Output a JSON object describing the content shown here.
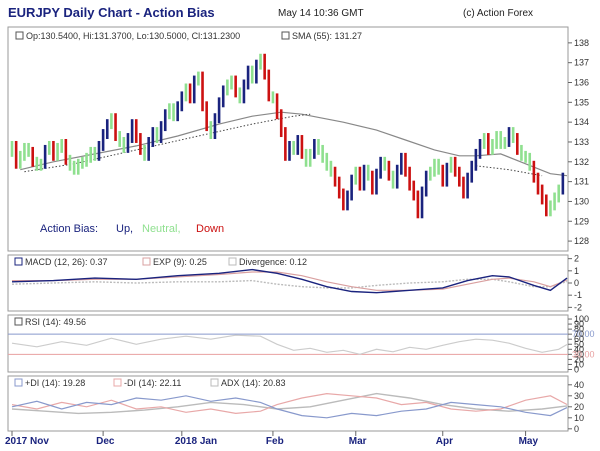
{
  "header": {
    "title": "EURJPY Daily Chart - Action Bias",
    "date": "May 14 10:36 GMT",
    "copyright": "(c) Action Forex"
  },
  "colors": {
    "up": "#1a237e",
    "neutral": "#8fe08f",
    "down": "#cc1111",
    "sma": "#888888",
    "ma_dotted": "#444444",
    "macd": "#1a237e",
    "exp": "#d9a0a0",
    "divergence": "#bbbbbb",
    "rsi": "#cccccc",
    "rsi_level_high": "#8899cc",
    "rsi_level_low": "#e8a0a0",
    "plus_di": "#8899cc",
    "minus_di": "#e8a8a8",
    "adx": "#bbbbbb"
  },
  "chart_data": [
    {
      "type": "bar",
      "panel": "price",
      "info": {
        "ohlc": "Op:130.5400, Hi:131.3700, Lo:130.5000, Cl:131.2300",
        "sma": "SMA (55): 131.27"
      },
      "legend": {
        "label": "Action Bias:",
        "up": "Up,",
        "neutral": "Neutral,",
        "down": "Down"
      },
      "ylim": [
        127.5,
        138.8
      ],
      "yticks": [
        128,
        129,
        130,
        131,
        132,
        133,
        134,
        135,
        136,
        137,
        138
      ],
      "xticks": [
        {
          "label": "2017 Nov",
          "x": 0
        },
        {
          "label": "Dec",
          "x": 22
        },
        {
          "label": "2018 Jan",
          "x": 41
        },
        {
          "label": "Feb",
          "x": 63
        },
        {
          "label": "Mar",
          "x": 83
        },
        {
          "label": "Apr",
          "x": 104
        },
        {
          "label": "May",
          "x": 124
        }
      ],
      "closes": [
        132.8,
        131.9,
        132.3,
        132.7,
        132.5,
        132.0,
        131.8,
        131.9,
        132.6,
        132.8,
        132.3,
        132.7,
        132.9,
        132.1,
        131.8,
        131.6,
        131.9,
        132.0,
        132.2,
        132.5,
        132.3,
        132.8,
        133.4,
        133.9,
        134.2,
        133.3,
        133.0,
        132.7,
        133.2,
        133.9,
        133.2,
        132.6,
        132.3,
        133.0,
        133.5,
        133.2,
        133.8,
        134.4,
        134.7,
        134.3,
        134.8,
        135.3,
        135.7,
        135.2,
        136.1,
        136.3,
        134.8,
        133.8,
        133.4,
        134.2,
        135.0,
        135.6,
        135.9,
        136.1,
        135.5,
        135.2,
        135.9,
        136.6,
        136.2,
        136.9,
        137.2,
        136.4,
        135.3,
        135.2,
        134.4,
        133.5,
        132.3,
        132.8,
        132.6,
        133.1,
        132.4,
        132.0,
        132.4,
        132.9,
        132.6,
        132.2,
        131.8,
        131.5,
        131.0,
        130.4,
        129.8,
        130.3,
        131.1,
        131.5,
        130.8,
        131.6,
        131.3,
        130.6,
        131.4,
        132.0,
        131.8,
        131.3,
        130.9,
        131.6,
        132.2,
        131.5,
        130.8,
        130.3,
        129.4,
        130.5,
        131.3,
        131.5,
        131.9,
        131.6,
        131.0,
        131.7,
        132.0,
        131.5,
        131.0,
        130.4,
        131.2,
        131.8,
        132.4,
        132.9,
        133.2,
        132.6,
        132.9,
        133.3,
        132.9,
        133.0,
        133.5,
        133.2,
        132.6,
        132.3,
        132.2,
        131.8,
        131.2,
        130.6,
        130.1,
        129.5,
        129.8,
        130.2,
        130.6,
        131.2
      ],
      "sma_points": [
        [
          2,
          131.6
        ],
        [
          10,
          132.0
        ],
        [
          20,
          132.4
        ],
        [
          30,
          132.8
        ],
        [
          40,
          133.3
        ],
        [
          50,
          133.9
        ],
        [
          58,
          134.3
        ],
        [
          65,
          134.5
        ],
        [
          70,
          134.4
        ],
        [
          80,
          134.0
        ],
        [
          88,
          133.6
        ],
        [
          95,
          133.1
        ],
        [
          102,
          132.6
        ],
        [
          108,
          132.3
        ],
        [
          112,
          132.3
        ],
        [
          118,
          132.4
        ],
        [
          124,
          131.9
        ],
        [
          130,
          131.4
        ],
        [
          134,
          131.3
        ]
      ],
      "dotted_points": [
        [
          3,
          131.5
        ],
        [
          15,
          131.9
        ],
        [
          30,
          132.6
        ],
        [
          45,
          133.3
        ],
        [
          58,
          133.9
        ],
        [
          68,
          134.3
        ],
        [
          72,
          134.4
        ]
      ],
      "dotted_tail": [
        [
          112,
          131.8
        ],
        [
          120,
          131.6
        ],
        [
          128,
          131.3
        ]
      ]
    },
    {
      "type": "line",
      "panel": "macd",
      "legend": {
        "macd": "MACD (12, 26): 0.37",
        "exp": "EXP (9): 0.25",
        "divergence": "Divergence: 0.12"
      },
      "ylim": [
        -2.3,
        2.3
      ],
      "yticks": [
        -2,
        -1,
        0,
        1,
        2
      ],
      "macd": [
        [
          0,
          0.1
        ],
        [
          10,
          0.2
        ],
        [
          20,
          0.4
        ],
        [
          30,
          0.3
        ],
        [
          40,
          0.6
        ],
        [
          50,
          0.8
        ],
        [
          58,
          1.1
        ],
        [
          64,
          0.8
        ],
        [
          70,
          0.3
        ],
        [
          76,
          -0.3
        ],
        [
          82,
          -0.7
        ],
        [
          88,
          -0.8
        ],
        [
          96,
          -0.6
        ],
        [
          104,
          -0.4
        ],
        [
          110,
          0.2
        ],
        [
          116,
          0.6
        ],
        [
          120,
          0.5
        ],
        [
          126,
          -0.2
        ],
        [
          130,
          -0.6
        ],
        [
          134,
          0.4
        ]
      ],
      "exp": [
        [
          0,
          0.2
        ],
        [
          10,
          0.2
        ],
        [
          20,
          0.3
        ],
        [
          30,
          0.3
        ],
        [
          40,
          0.5
        ],
        [
          50,
          0.7
        ],
        [
          58,
          0.9
        ],
        [
          64,
          0.9
        ],
        [
          70,
          0.6
        ],
        [
          76,
          0.1
        ],
        [
          82,
          -0.3
        ],
        [
          88,
          -0.6
        ],
        [
          96,
          -0.6
        ],
        [
          104,
          -0.5
        ],
        [
          110,
          -0.1
        ],
        [
          116,
          0.3
        ],
        [
          120,
          0.4
        ],
        [
          126,
          0.1
        ],
        [
          130,
          -0.3
        ],
        [
          134,
          0.25
        ]
      ],
      "divergence": [
        [
          0,
          -0.1
        ],
        [
          10,
          0.0
        ],
        [
          20,
          0.1
        ],
        [
          30,
          0.0
        ],
        [
          40,
          0.1
        ],
        [
          50,
          0.1
        ],
        [
          58,
          0.2
        ],
        [
          64,
          -0.1
        ],
        [
          70,
          -0.3
        ],
        [
          76,
          -0.4
        ],
        [
          82,
          -0.4
        ],
        [
          88,
          -0.2
        ],
        [
          96,
          0.0
        ],
        [
          104,
          0.1
        ],
        [
          110,
          0.3
        ],
        [
          116,
          0.3
        ],
        [
          120,
          0.1
        ],
        [
          126,
          -0.3
        ],
        [
          130,
          -0.3
        ],
        [
          134,
          0.12
        ]
      ]
    },
    {
      "type": "line",
      "panel": "rsi",
      "legend": {
        "rsi": "RSI (14): 49.56"
      },
      "ylim": [
        -5,
        108
      ],
      "yticks": [
        0,
        10,
        20,
        30,
        40,
        50,
        60,
        70,
        80,
        90,
        100
      ],
      "levels": [
        70,
        30
      ],
      "level_labels": [
        "70.00",
        "30.00"
      ],
      "rsi": [
        [
          0,
          52
        ],
        [
          6,
          45
        ],
        [
          12,
          55
        ],
        [
          18,
          48
        ],
        [
          24,
          62
        ],
        [
          30,
          50
        ],
        [
          36,
          60
        ],
        [
          42,
          66
        ],
        [
          48,
          60
        ],
        [
          54,
          68
        ],
        [
          60,
          66
        ],
        [
          64,
          50
        ],
        [
          68,
          38
        ],
        [
          72,
          42
        ],
        [
          76,
          34
        ],
        [
          80,
          38
        ],
        [
          84,
          30
        ],
        [
          88,
          40
        ],
        [
          92,
          35
        ],
        [
          96,
          44
        ],
        [
          100,
          40
        ],
        [
          104,
          48
        ],
        [
          108,
          55
        ],
        [
          112,
          60
        ],
        [
          116,
          58
        ],
        [
          120,
          52
        ],
        [
          124,
          42
        ],
        [
          128,
          34
        ],
        [
          132,
          40
        ],
        [
          134,
          49.56
        ]
      ]
    },
    {
      "type": "line",
      "panel": "dmi",
      "legend": {
        "plus_di": "+DI (14): 19.28",
        "minus_di": "-DI (14): 22.11",
        "adx": "ADX (14): 20.83"
      },
      "ylim": [
        -2,
        48
      ],
      "yticks": [
        0,
        10,
        20,
        30,
        40
      ],
      "plus_di": [
        [
          0,
          20
        ],
        [
          6,
          25
        ],
        [
          12,
          18
        ],
        [
          18,
          24
        ],
        [
          24,
          22
        ],
        [
          30,
          28
        ],
        [
          36,
          26
        ],
        [
          42,
          30
        ],
        [
          48,
          25
        ],
        [
          54,
          28
        ],
        [
          60,
          24
        ],
        [
          64,
          18
        ],
        [
          70,
          12
        ],
        [
          76,
          10
        ],
        [
          82,
          14
        ],
        [
          88,
          12
        ],
        [
          94,
          16
        ],
        [
          100,
          18
        ],
        [
          106,
          24
        ],
        [
          112,
          22
        ],
        [
          118,
          20
        ],
        [
          124,
          15
        ],
        [
          130,
          12
        ],
        [
          134,
          19.28
        ]
      ],
      "minus_di": [
        [
          0,
          22
        ],
        [
          6,
          18
        ],
        [
          12,
          24
        ],
        [
          18,
          20
        ],
        [
          24,
          26
        ],
        [
          30,
          18
        ],
        [
          36,
          20
        ],
        [
          42,
          15
        ],
        [
          48,
          18
        ],
        [
          54,
          14
        ],
        [
          60,
          16
        ],
        [
          64,
          22
        ],
        [
          70,
          28
        ],
        [
          76,
          32
        ],
        [
          82,
          30
        ],
        [
          88,
          28
        ],
        [
          94,
          22
        ],
        [
          100,
          24
        ],
        [
          106,
          18
        ],
        [
          112,
          16
        ],
        [
          118,
          18
        ],
        [
          124,
          26
        ],
        [
          130,
          30
        ],
        [
          134,
          22.11
        ]
      ],
      "adx": [
        [
          0,
          18
        ],
        [
          8,
          16
        ],
        [
          16,
          14
        ],
        [
          24,
          15
        ],
        [
          32,
          17
        ],
        [
          40,
          20
        ],
        [
          48,
          24
        ],
        [
          56,
          22
        ],
        [
          64,
          18
        ],
        [
          72,
          20
        ],
        [
          80,
          26
        ],
        [
          88,
          32
        ],
        [
          96,
          28
        ],
        [
          104,
          22
        ],
        [
          112,
          18
        ],
        [
          120,
          16
        ],
        [
          128,
          18
        ],
        [
          134,
          20.83
        ]
      ]
    }
  ]
}
